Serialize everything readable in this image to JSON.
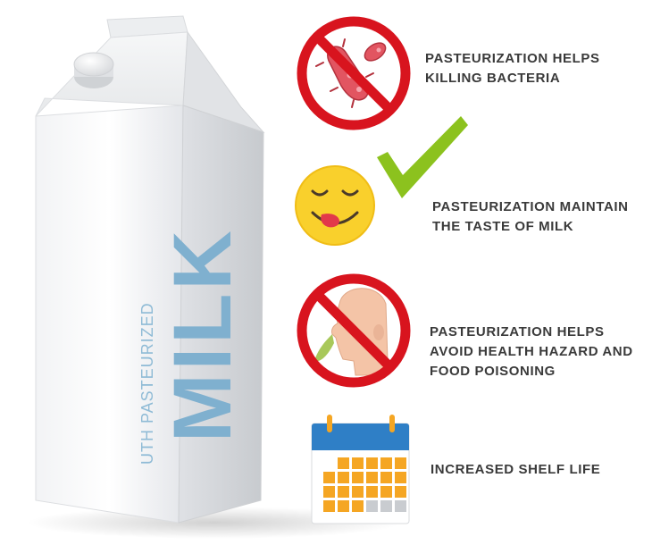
{
  "carton": {
    "subtitle": "UTH PASTEURIZED",
    "brand": "MILK"
  },
  "benefits": [
    {
      "lines": [
        "PASTEURIZATION HELPS",
        "KILLING BACTERIA"
      ],
      "icon": "no-bacteria-icon"
    },
    {
      "lines": [
        "PASTEURIZATION MAINTAIN",
        "THE TASTE OF MILK"
      ],
      "icon": "yummy-face-icon"
    },
    {
      "lines": [
        "PASTEURIZATION HELPS",
        "AVOID HEALTH HAZARD AND",
        "FOOD POISONING"
      ],
      "icon": "no-vomit-icon"
    },
    {
      "lines": [
        "INCREASED SHELF LIFE"
      ],
      "icon": "calendar-icon"
    }
  ],
  "colors": {
    "prohibition_red": "#d8141e",
    "checkmark_green": "#8cc21e",
    "emoji_yellow": "#f9d02c",
    "milk_text_blue": "#7fb0cf",
    "calendar_blue": "#2f7fc6",
    "calendar_orange": "#f5a623"
  }
}
